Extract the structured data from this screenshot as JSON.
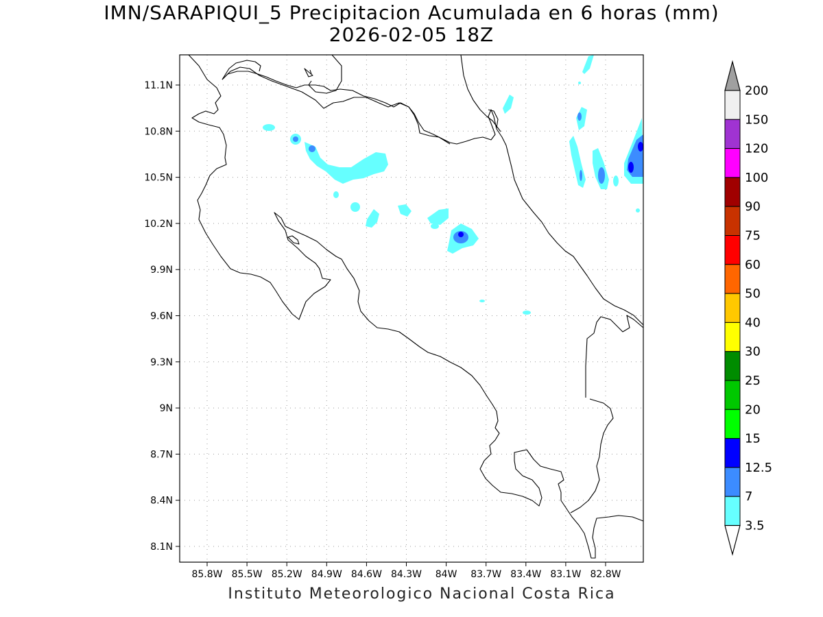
{
  "title": "IMN/SARAPIQUI_5 Precipitacion Acumulada en 6 horas (mm)",
  "subtitle": "2026-02-05 18Z",
  "footer": "Instituto Meteorologico Nacional Costa Rica",
  "lat_ticks": [
    "11.1N",
    "10.8N",
    "10.5N",
    "10.2N",
    "9.9N",
    "9.6N",
    "9.3N",
    "9N",
    "8.7N",
    "8.4N",
    "8.1N"
  ],
  "lon_ticks": [
    "85.8W",
    "85.5W",
    "85.2W",
    "84.9W",
    "84.6W",
    "84.3W",
    "84W",
    "83.7W",
    "83.4W",
    "83.1W",
    "82.8W"
  ],
  "colorbar": {
    "labels": [
      "200",
      "150",
      "120",
      "100",
      "90",
      "75",
      "60",
      "50",
      "40",
      "30",
      "25",
      "20",
      "15",
      "12.5",
      "7",
      "3.5"
    ],
    "colors": [
      "#f0f0f0",
      "#a033d2",
      "#ff00ff",
      "#a00000",
      "#c83200",
      "#ff0000",
      "#ff6600",
      "#ffc800",
      "#ffff00",
      "#008c00",
      "#00c800",
      "#00ff00",
      "#0000ff",
      "#3c8cff",
      "#66ffff"
    ],
    "top_arrow_color": "#a0a0a0",
    "bottom_arrow_color": "#ffffff"
  }
}
